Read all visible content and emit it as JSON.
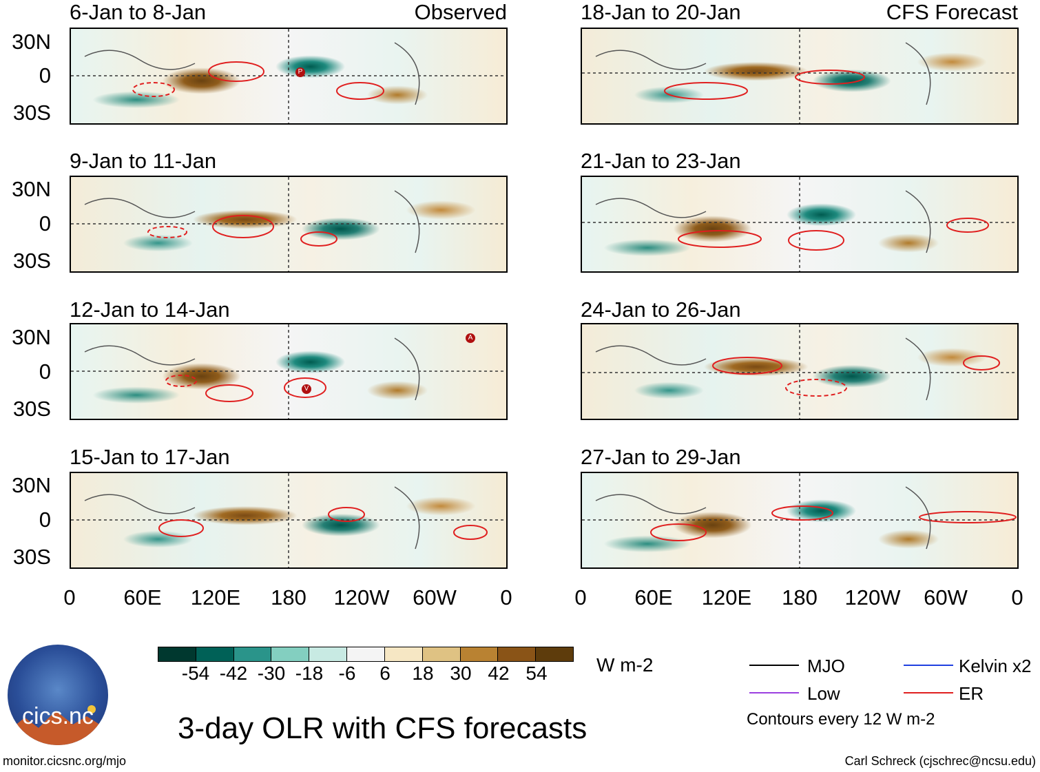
{
  "panels": {
    "left": [
      {
        "title": "6-Jan to 8-Jan",
        "source": "Observed"
      },
      {
        "title": "9-Jan to 11-Jan",
        "source": ""
      },
      {
        "title": "12-Jan to 14-Jan",
        "source": ""
      },
      {
        "title": "15-Jan to 17-Jan",
        "source": ""
      }
    ],
    "right": [
      {
        "title": "18-Jan to 20-Jan",
        "source": "CFS Forecast"
      },
      {
        "title": "21-Jan to 23-Jan",
        "source": ""
      },
      {
        "title": "24-Jan to 26-Jan",
        "source": ""
      },
      {
        "title": "27-Jan to 29-Jan",
        "source": ""
      }
    ]
  },
  "lat_labels": [
    "30N",
    "0",
    "30S"
  ],
  "lon_labels": [
    "0",
    "60E",
    "120E",
    "180",
    "120W",
    "60W",
    "0"
  ],
  "colorbar": {
    "colors": [
      "#00382f",
      "#006157",
      "#2a948a",
      "#83cfc0",
      "#c8eae3",
      "#f4f4f4",
      "#f6e7c4",
      "#dfc283",
      "#b98232",
      "#8a5417",
      "#5e3c0c"
    ],
    "labels": [
      "-54",
      "-42",
      "-30",
      "-18",
      "-6",
      "6",
      "18",
      "30",
      "42",
      "54"
    ],
    "units": "W m-2"
  },
  "legend": {
    "items": [
      {
        "label": "MJO",
        "color": "#000000"
      },
      {
        "label": "Kelvin x2",
        "color": "#1f3fe0"
      },
      {
        "label": "Low",
        "color": "#9b3fe0"
      },
      {
        "label": "ER",
        "color": "#e01f1f"
      }
    ],
    "note": "Contours every 12 W m-2"
  },
  "title": "3-day OLR with CFS forecasts",
  "logo_text": "cics.nc",
  "footer": {
    "left": "monitor.cicsnc.org/mjo",
    "right": "Carl Schreck (cjschrec@ncsu.edu)"
  },
  "markers": [
    {
      "panel": "left-0",
      "label": "P"
    },
    {
      "panel": "left-2",
      "label": "A"
    },
    {
      "panel": "left-2",
      "label": "V"
    }
  ]
}
